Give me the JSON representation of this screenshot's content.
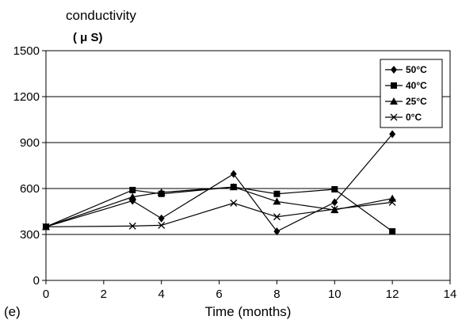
{
  "chart_data": {
    "type": "line",
    "panel_label": "(e)",
    "ylabel": "conductivity",
    "ylabel_unit": "( μ S)",
    "xlabel": "Time (months)",
    "xlim": [
      0,
      14
    ],
    "ylim": [
      0,
      1500
    ],
    "xticks": [
      "0",
      "2",
      "4",
      "6",
      "8",
      "10",
      "12",
      "14"
    ],
    "yticks": [
      "0",
      "300",
      "600",
      "900",
      "1200",
      "1500"
    ],
    "grid": "horizontal",
    "legend_position": "top-right",
    "series": [
      {
        "name": "50°C",
        "marker": "diamond",
        "points": [
          [
            0,
            350
          ],
          [
            3,
            520
          ],
          [
            4,
            405
          ],
          [
            6.5,
            695
          ],
          [
            8,
            320
          ],
          [
            10,
            510
          ],
          [
            12,
            955
          ]
        ]
      },
      {
        "name": "40°C",
        "marker": "square",
        "points": [
          [
            0,
            350
          ],
          [
            3,
            590
          ],
          [
            4,
            565
          ],
          [
            6.5,
            610
          ],
          [
            8,
            565
          ],
          [
            10,
            595
          ],
          [
            12,
            320
          ]
        ]
      },
      {
        "name": "25°C",
        "marker": "triangle",
        "points": [
          [
            0,
            350
          ],
          [
            3,
            545
          ],
          [
            4,
            575
          ],
          [
            6.5,
            610
          ],
          [
            8,
            515
          ],
          [
            10,
            460
          ],
          [
            12,
            535
          ]
        ]
      },
      {
        "name": "0°C",
        "marker": "x",
        "points": [
          [
            0,
            350
          ],
          [
            3,
            355
          ],
          [
            4,
            360
          ],
          [
            6.5,
            505
          ],
          [
            8,
            415
          ],
          [
            10,
            465
          ],
          [
            12,
            510
          ]
        ]
      }
    ]
  }
}
